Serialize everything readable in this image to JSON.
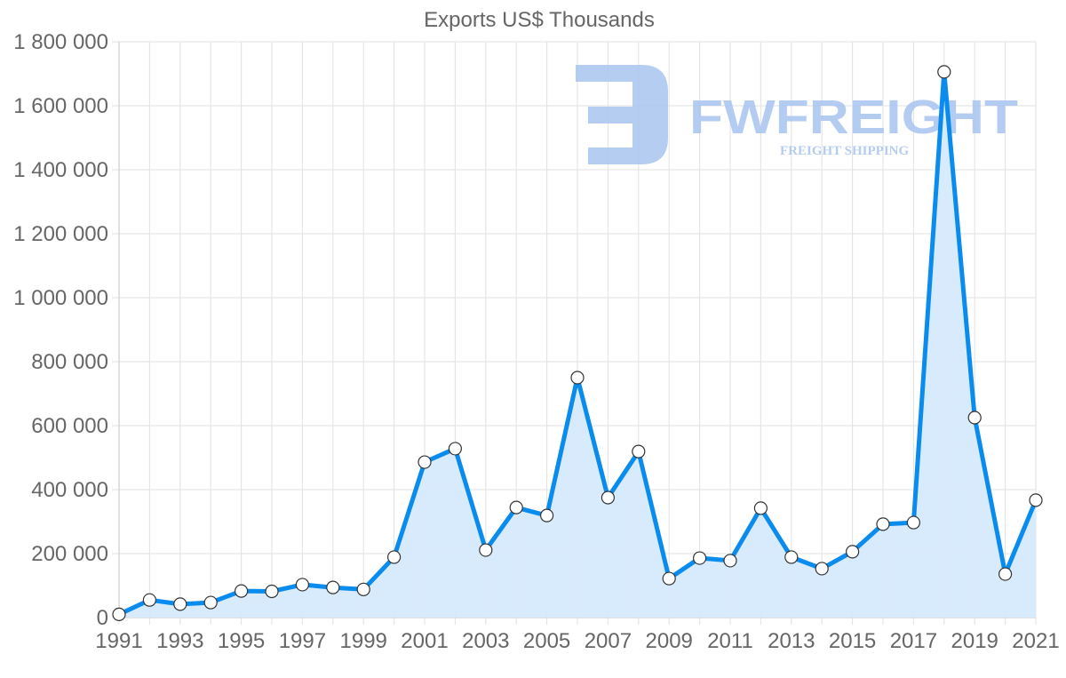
{
  "chart_data": {
    "type": "line",
    "title": "Exports US$ Thousands",
    "xlabel": "",
    "ylabel": "",
    "ylim": [
      0,
      1800000
    ],
    "y_ticks": [
      0,
      200000,
      400000,
      600000,
      800000,
      1000000,
      1200000,
      1400000,
      1600000,
      1800000
    ],
    "y_tick_labels": [
      "0",
      "200 000",
      "400 000",
      "600 000",
      "800 000",
      "1 000 000",
      "1 200 000",
      "1 400 000",
      "1 600 000",
      "1 800 000"
    ],
    "x_tick_labels": [
      "1991",
      "1993",
      "1995",
      "1997",
      "1999",
      "2001",
      "2003",
      "2005",
      "2007",
      "2009",
      "2011",
      "2013",
      "2015",
      "2017",
      "2019",
      "2021"
    ],
    "grid": true,
    "legend": null,
    "fill_area": true,
    "x": [
      1991,
      1992,
      1993,
      1994,
      1995,
      1996,
      1997,
      1998,
      1999,
      2000,
      2001,
      2002,
      2003,
      2004,
      2005,
      2006,
      2007,
      2008,
      2009,
      2010,
      2011,
      2012,
      2013,
      2014,
      2015,
      2016,
      2017,
      2018,
      2019,
      2020,
      2021
    ],
    "series": [
      {
        "name": "Exports US$ Thousands",
        "values": [
          10000,
          55000,
          42000,
          47000,
          83000,
          82000,
          103000,
          94000,
          88000,
          189000,
          486000,
          528000,
          211000,
          344000,
          319000,
          750000,
          375000,
          519000,
          122000,
          186000,
          178000,
          342000,
          189000,
          153000,
          206000,
          292000,
          297000,
          1706000,
          625000,
          136000,
          367000
        ]
      }
    ]
  },
  "colors": {
    "line": "#0a8cee",
    "fill": "#d6eafc",
    "point_fill": "#ffffff",
    "point_stroke": "#333333",
    "text": "#666666",
    "watermark": "#a9c4f0"
  },
  "watermark": {
    "brand": "FWFREIGHT",
    "tagline": "FREIGHT SHIPPING"
  }
}
